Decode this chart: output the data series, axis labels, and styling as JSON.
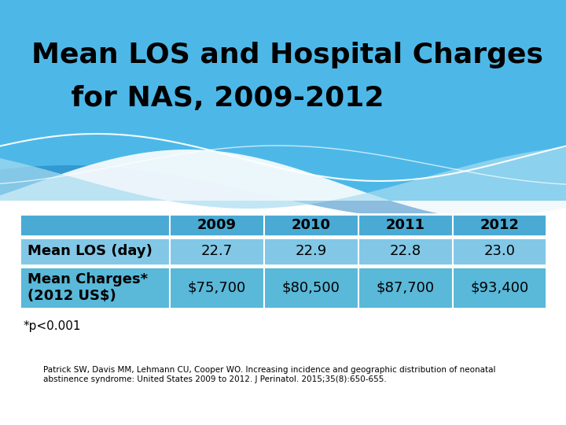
{
  "title_line1": "Mean LOS and Hospital Charges",
  "title_line2": "    for NAS, 2009-2012",
  "columns": [
    "",
    "2009",
    "2010",
    "2011",
    "2012"
  ],
  "row1_label": "Mean LOS (day)",
  "row1_values": [
    "22.7",
    "22.9",
    "22.8",
    "23.0"
  ],
  "row2_label": "Mean Charges*\n(2012 US$)",
  "row2_values": [
    "$75,700",
    "$80,500",
    "$87,700",
    "$93,400"
  ],
  "footnote": "*p<0.001",
  "citation_normal": "Patrick SW, Davis MM, Lehmann CU, Cooper WO. Increasing incidence and geographic distribution of neonatal\nabstinence syndrome: United States 2009 to 2012. ",
  "citation_italic": "J Perinatol.",
  "citation_normal2": " 2015;35(8):650-655.",
  "bg_color": "#ffffff",
  "title_bg_top": "#4db8e8",
  "title_bg_bottom": "#82d0f0",
  "wave_white1_color": "#ffffff",
  "wave_white2_color": "#d0eef8",
  "wave_dark_color": "#1a7bbf",
  "wave_light_color": "#a8dcf0",
  "header_bg": "#4aaad4",
  "row1_bg": "#82c8e6",
  "row2_bg": "#5ab8d8",
  "table_border_color": "#ffffff",
  "title_color": "#000000",
  "header_text_color": "#000000"
}
